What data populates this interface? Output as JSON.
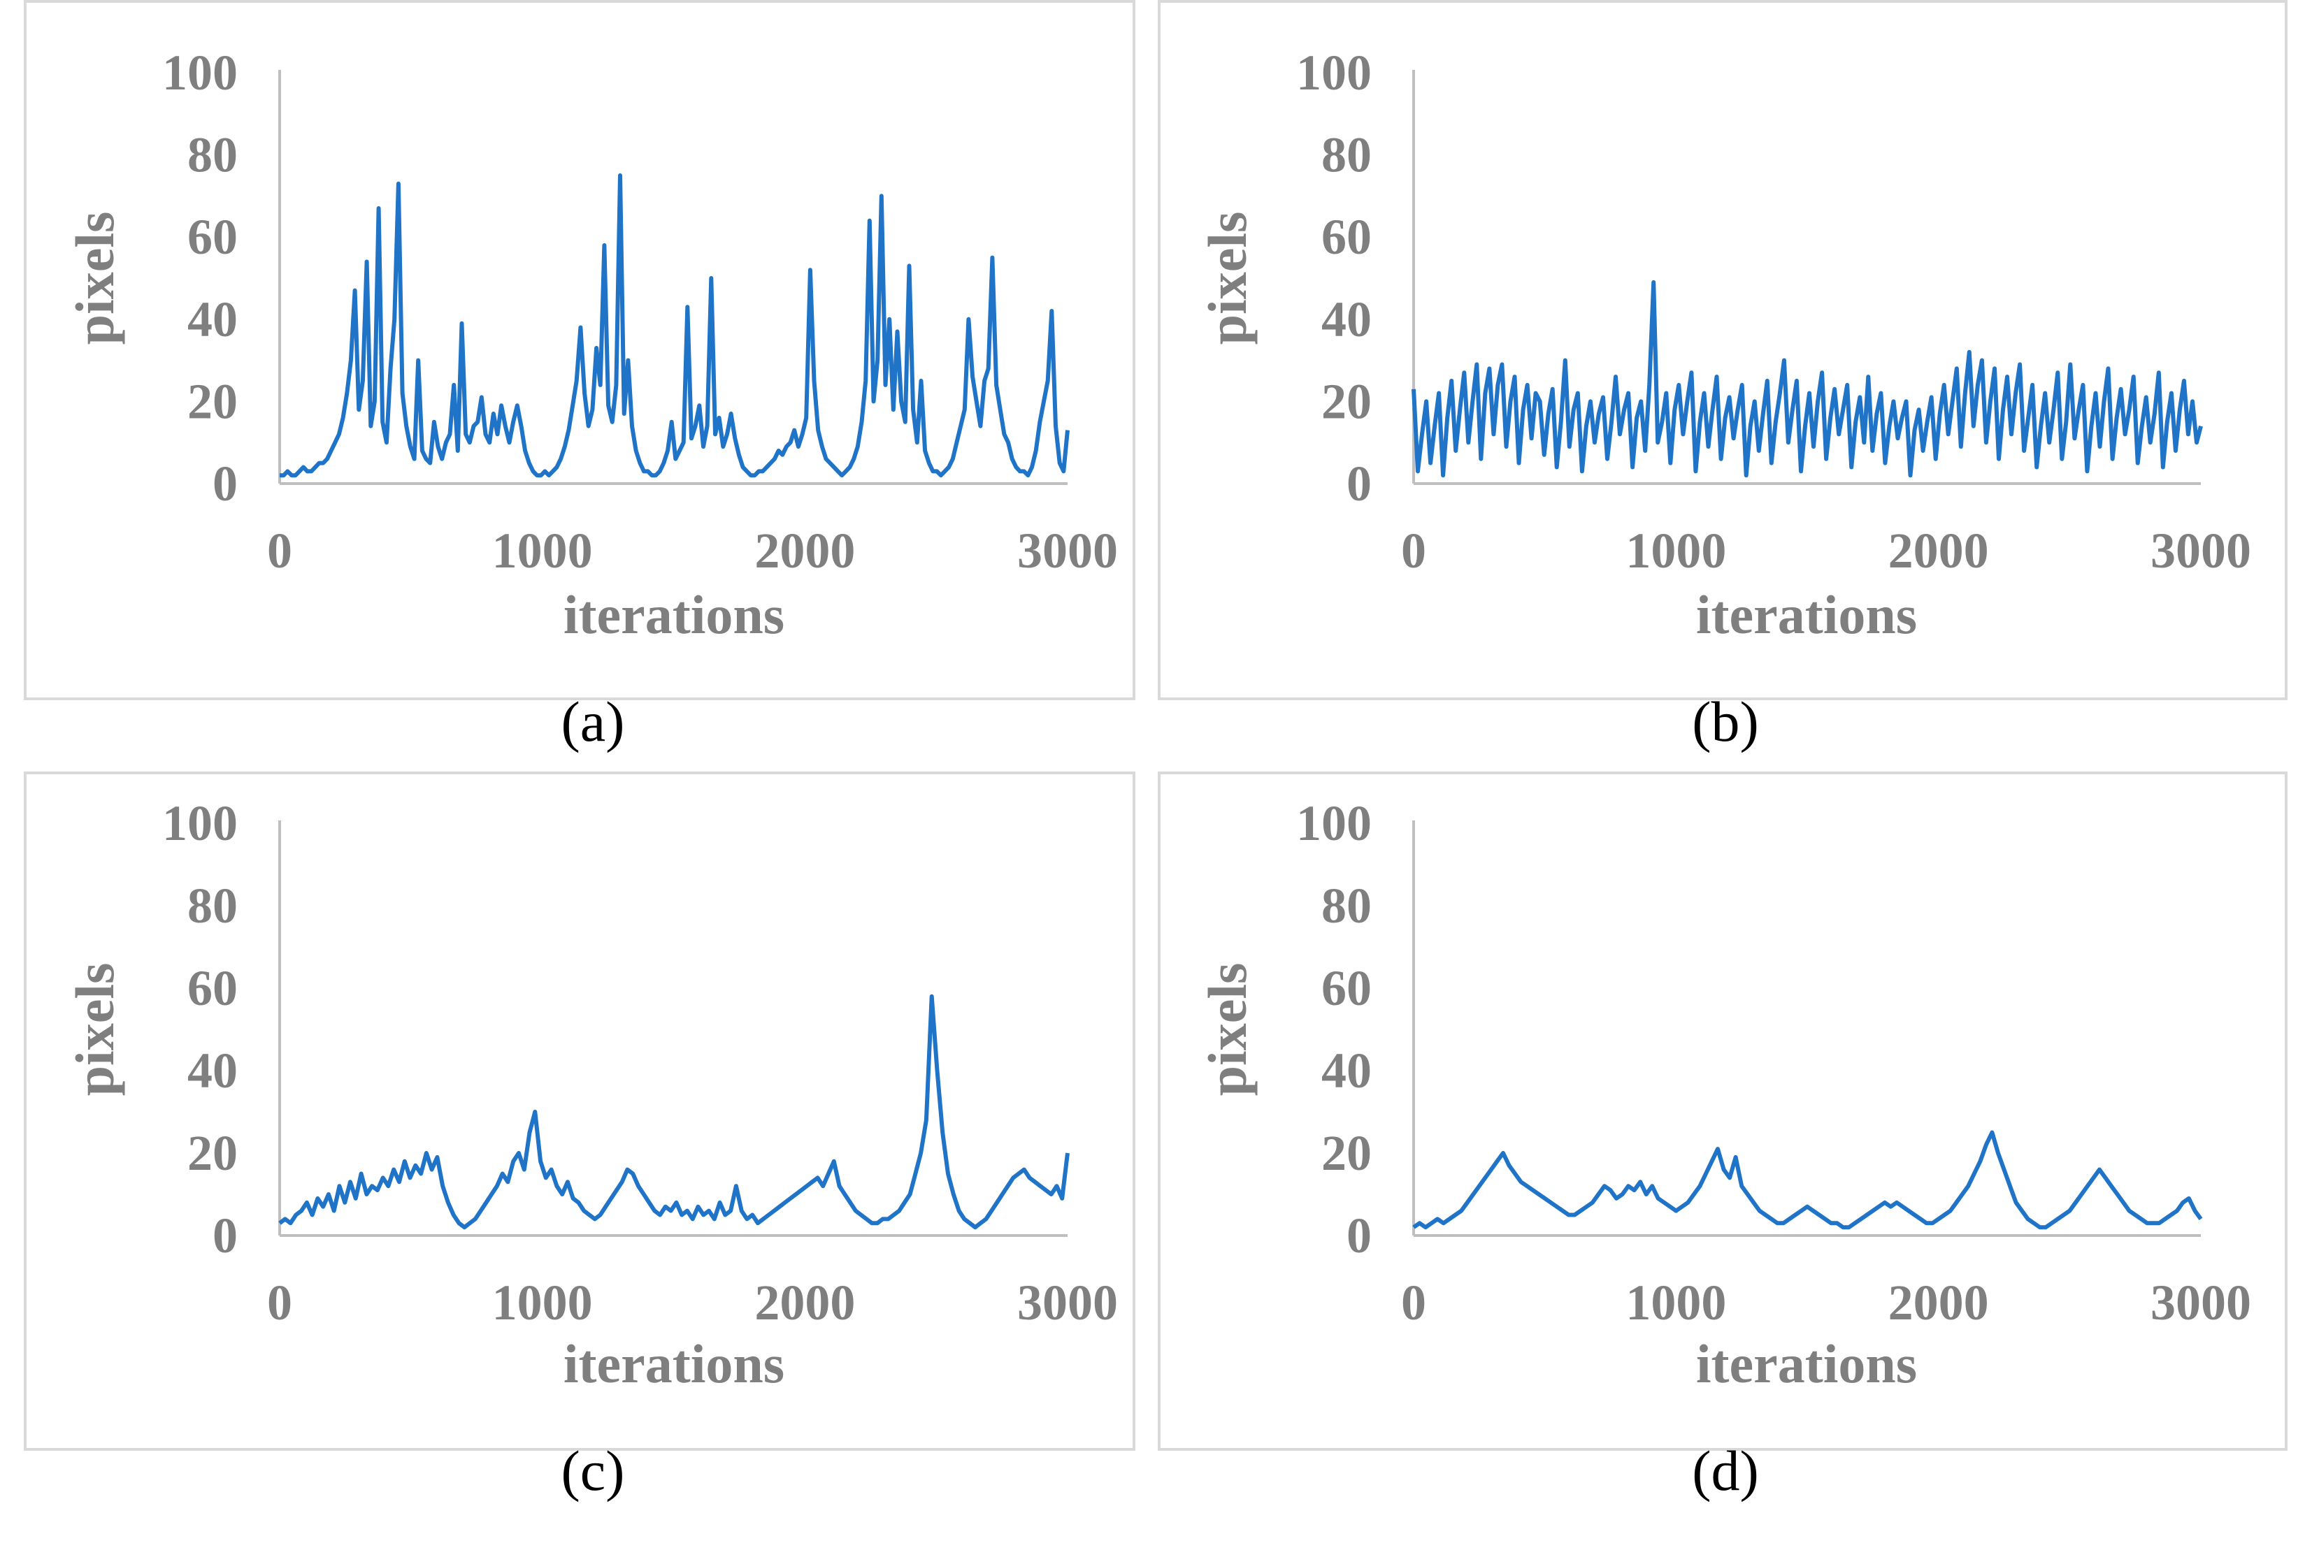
{
  "colors": {
    "series": "#1f74c8",
    "tick": "#7f7f7f",
    "frame": "#d9d9d9"
  },
  "chart_data": [
    {
      "id": "a",
      "type": "line",
      "caption": "(a)",
      "xlabel": "iterations",
      "ylabel": "pixels",
      "xlim": [
        0,
        3000
      ],
      "ylim": [
        0,
        100
      ],
      "xticks": [
        "0",
        "1000",
        "2000",
        "3000"
      ],
      "yticks": [
        "0",
        "20",
        "40",
        "60",
        "80",
        "100"
      ],
      "series": [
        {
          "name": "pixels",
          "values": [
            2,
            2,
            3,
            2,
            2,
            3,
            4,
            3,
            3,
            4,
            5,
            5,
            6,
            8,
            10,
            12,
            16,
            22,
            30,
            47,
            18,
            25,
            54,
            14,
            20,
            67,
            15,
            10,
            28,
            40,
            73,
            22,
            14,
            9,
            6,
            30,
            8,
            6,
            5,
            15,
            9,
            6,
            10,
            12,
            24,
            8,
            39,
            12,
            10,
            14,
            15,
            21,
            12,
            10,
            17,
            12,
            19,
            14,
            10,
            15,
            19,
            14,
            8,
            5,
            3,
            2,
            2,
            3,
            2,
            3,
            4,
            6,
            9,
            13,
            19,
            25,
            38,
            22,
            14,
            18,
            33,
            24,
            58,
            19,
            15,
            24,
            75,
            17,
            30,
            14,
            8,
            5,
            3,
            3,
            2,
            2,
            3,
            5,
            8,
            15,
            6,
            8,
            10,
            43,
            11,
            14,
            19,
            9,
            14,
            50,
            12,
            16,
            9,
            12,
            17,
            11,
            7,
            4,
            3,
            2,
            2,
            3,
            3,
            4,
            5,
            6,
            8,
            7,
            9,
            10,
            13,
            9,
            12,
            16,
            52,
            25,
            13,
            9,
            6,
            5,
            4,
            3,
            2,
            3,
            4,
            6,
            9,
            15,
            25,
            64,
            20,
            30,
            70,
            24,
            40,
            18,
            37,
            20,
            15,
            53,
            18,
            10,
            25,
            8,
            5,
            3,
            3,
            2,
            3,
            4,
            6,
            10,
            14,
            18,
            40,
            26,
            20,
            14,
            25,
            28,
            55,
            24,
            18,
            12,
            10,
            6,
            4,
            3,
            3,
            2,
            4,
            8,
            15,
            20,
            25,
            42,
            14,
            5,
            3,
            13
          ]
        }
      ]
    },
    {
      "id": "b",
      "type": "line",
      "caption": "(b)",
      "xlabel": "iterations",
      "ylabel": "pixels",
      "xlim": [
        0,
        3000
      ],
      "ylim": [
        0,
        100
      ],
      "xticks": [
        "0",
        "1000",
        "2000",
        "3000"
      ],
      "yticks": [
        "0",
        "20",
        "40",
        "60",
        "80",
        "100"
      ],
      "series": [
        {
          "name": "pixels",
          "values": [
            23,
            3,
            12,
            20,
            5,
            14,
            22,
            2,
            16,
            25,
            8,
            18,
            27,
            10,
            20,
            29,
            6,
            22,
            28,
            12,
            24,
            29,
            9,
            20,
            26,
            5,
            18,
            24,
            11,
            22,
            20,
            7,
            17,
            23,
            4,
            15,
            30,
            9,
            18,
            22,
            3,
            14,
            20,
            10,
            17,
            21,
            6,
            15,
            26,
            12,
            18,
            22,
            4,
            16,
            20,
            8,
            24,
            49,
            10,
            15,
            22,
            5,
            18,
            24,
            12,
            20,
            27,
            3,
            15,
            22,
            9,
            18,
            26,
            6,
            16,
            21,
            11,
            18,
            24,
            2,
            14,
            20,
            8,
            17,
            25,
            5,
            15,
            22,
            30,
            10,
            18,
            25,
            3,
            14,
            22,
            9,
            20,
            27,
            6,
            16,
            23,
            12,
            18,
            24,
            4,
            15,
            21,
            10,
            26,
            8,
            17,
            22,
            5,
            14,
            20,
            11,
            16,
            20,
            2,
            13,
            18,
            8,
            15,
            21,
            6,
            17,
            24,
            12,
            20,
            28,
            9,
            22,
            32,
            14,
            24,
            30,
            10,
            20,
            28,
            6,
            18,
            26,
            12,
            22,
            29,
            8,
            16,
            24,
            4,
            14,
            22,
            10,
            18,
            27,
            6,
            15,
            29,
            11,
            18,
            24,
            3,
            14,
            22,
            9,
            20,
            28,
            6,
            16,
            23,
            12,
            18,
            26,
            5,
            14,
            21,
            10,
            17,
            27,
            4,
            15,
            22,
            8,
            18,
            25,
            12,
            20,
            10,
            14
          ]
        }
      ]
    },
    {
      "id": "c",
      "type": "line",
      "caption": "(c)",
      "xlabel": "iterations",
      "ylabel": "pixels",
      "xlim": [
        0,
        3000
      ],
      "ylim": [
        0,
        100
      ],
      "xticks": [
        "0",
        "1000",
        "2000",
        "3000"
      ],
      "yticks": [
        "0",
        "20",
        "40",
        "60",
        "80",
        "100"
      ],
      "series": [
        {
          "name": "pixels",
          "values": [
            3,
            4,
            3,
            5,
            6,
            8,
            5,
            9,
            7,
            10,
            6,
            12,
            8,
            13,
            9,
            15,
            10,
            12,
            11,
            14,
            12,
            16,
            13,
            18,
            14,
            17,
            15,
            20,
            16,
            19,
            12,
            8,
            5,
            3,
            2,
            3,
            4,
            6,
            8,
            10,
            12,
            15,
            13,
            18,
            20,
            16,
            25,
            30,
            18,
            14,
            16,
            12,
            10,
            13,
            9,
            8,
            6,
            5,
            4,
            5,
            7,
            9,
            11,
            13,
            16,
            15,
            12,
            10,
            8,
            6,
            5,
            7,
            6,
            8,
            5,
            6,
            4,
            7,
            5,
            6,
            4,
            8,
            5,
            6,
            12,
            6,
            4,
            5,
            3,
            4,
            5,
            6,
            7,
            8,
            9,
            10,
            11,
            12,
            13,
            14,
            12,
            15,
            18,
            12,
            10,
            8,
            6,
            5,
            4,
            3,
            3,
            4,
            4,
            5,
            6,
            8,
            10,
            15,
            20,
            28,
            58,
            40,
            25,
            15,
            10,
            6,
            4,
            3,
            2,
            3,
            4,
            6,
            8,
            10,
            12,
            14,
            15,
            16,
            14,
            13,
            12,
            11,
            10,
            12,
            9,
            20
          ]
        }
      ]
    },
    {
      "id": "d",
      "type": "line",
      "caption": "(d)",
      "xlabel": "iterations",
      "ylabel": "pixels",
      "xlim": [
        0,
        3000
      ],
      "ylim": [
        0,
        100
      ],
      "xticks": [
        "0",
        "1000",
        "2000",
        "3000"
      ],
      "yticks": [
        "0",
        "20",
        "40",
        "60",
        "80",
        "100"
      ],
      "series": [
        {
          "name": "pixels",
          "values": [
            2,
            3,
            2,
            3,
            4,
            3,
            4,
            5,
            6,
            8,
            10,
            12,
            14,
            16,
            18,
            20,
            17,
            15,
            13,
            12,
            11,
            10,
            9,
            8,
            7,
            6,
            5,
            5,
            6,
            7,
            8,
            10,
            12,
            11,
            9,
            10,
            12,
            11,
            13,
            10,
            12,
            9,
            8,
            7,
            6,
            7,
            8,
            10,
            12,
            15,
            18,
            21,
            16,
            14,
            19,
            12,
            10,
            8,
            6,
            5,
            4,
            3,
            3,
            4,
            5,
            6,
            7,
            6,
            5,
            4,
            3,
            3,
            2,
            2,
            3,
            4,
            5,
            6,
            7,
            8,
            7,
            8,
            7,
            6,
            5,
            4,
            3,
            3,
            4,
            5,
            6,
            8,
            10,
            12,
            15,
            18,
            22,
            25,
            20,
            16,
            12,
            8,
            6,
            4,
            3,
            2,
            2,
            3,
            4,
            5,
            6,
            8,
            10,
            12,
            14,
            16,
            14,
            12,
            10,
            8,
            6,
            5,
            4,
            3,
            3,
            3,
            4,
            5,
            6,
            8,
            9,
            6,
            4
          ]
        }
      ]
    }
  ]
}
